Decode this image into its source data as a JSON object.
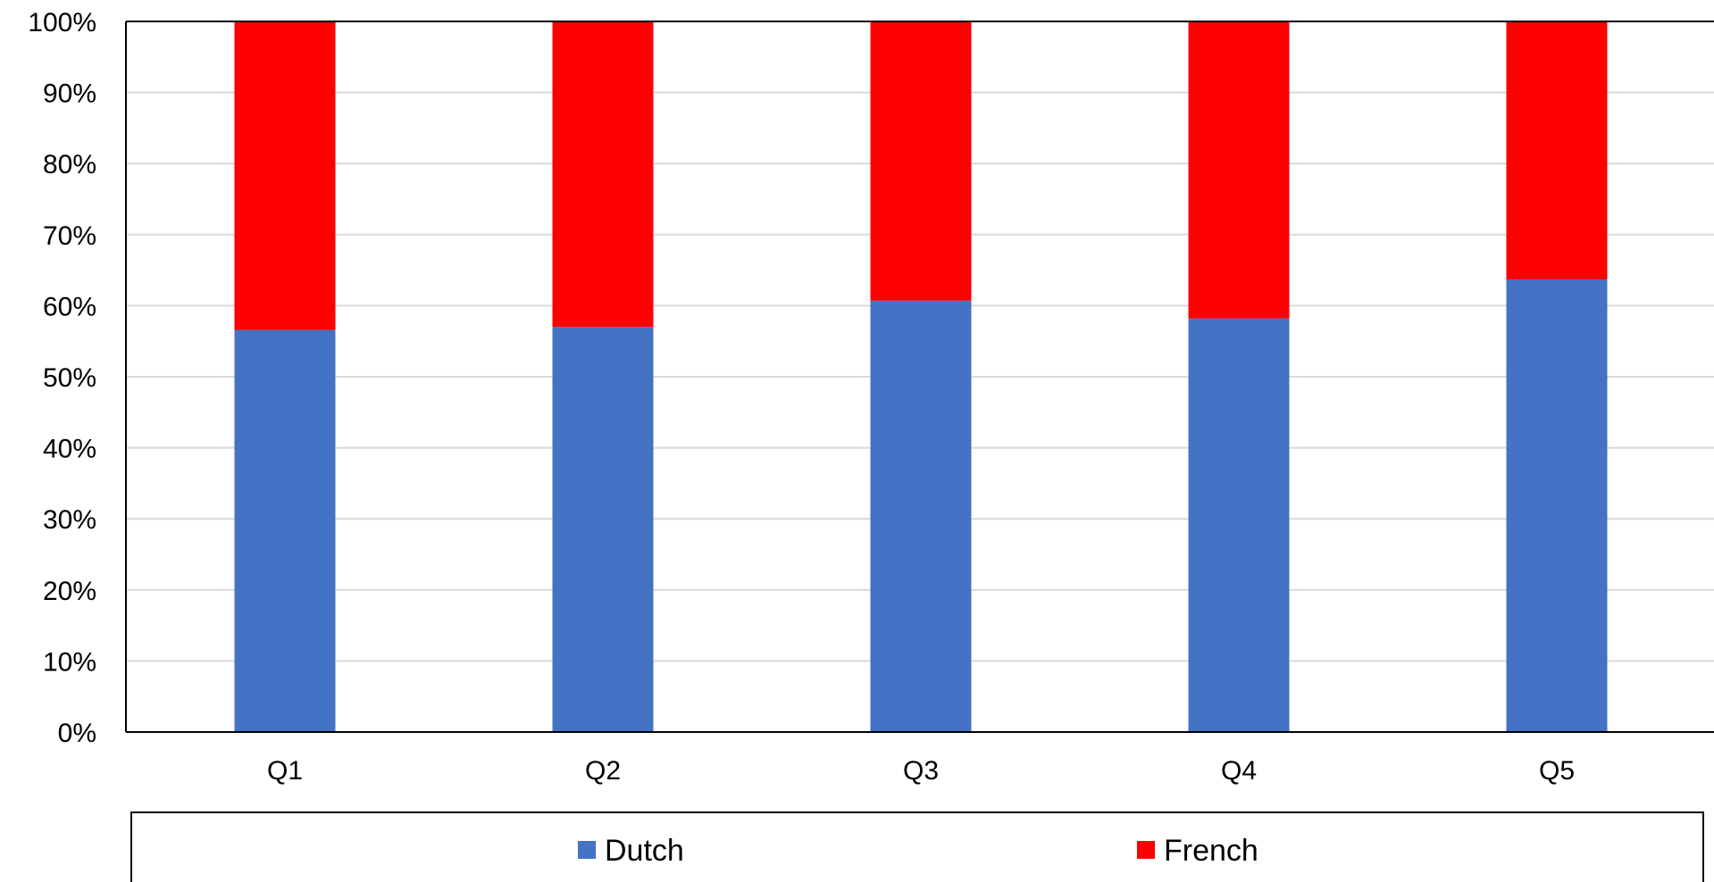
{
  "chart_data": {
    "type": "bar",
    "stacked": true,
    "normalized_percent": true,
    "categories": [
      "Q1",
      "Q2",
      "Q3",
      "Q4",
      "Q5"
    ],
    "series": [
      {
        "name": "Dutch",
        "color": "#4472C4",
        "values": [
          56.6,
          57.0,
          60.7,
          58.2,
          63.7
        ]
      },
      {
        "name": "French",
        "color": "#FF0000",
        "values": [
          43.4,
          43.0,
          39.3,
          41.8,
          36.3
        ]
      }
    ],
    "title": "",
    "xlabel": "",
    "ylabel": "",
    "ylim": [
      0,
      100
    ],
    "yticks": [
      "0%",
      "10%",
      "20%",
      "30%",
      "40%",
      "50%",
      "60%",
      "70%",
      "80%",
      "90%",
      "100%"
    ],
    "grid": true,
    "legend_position": "bottom"
  }
}
